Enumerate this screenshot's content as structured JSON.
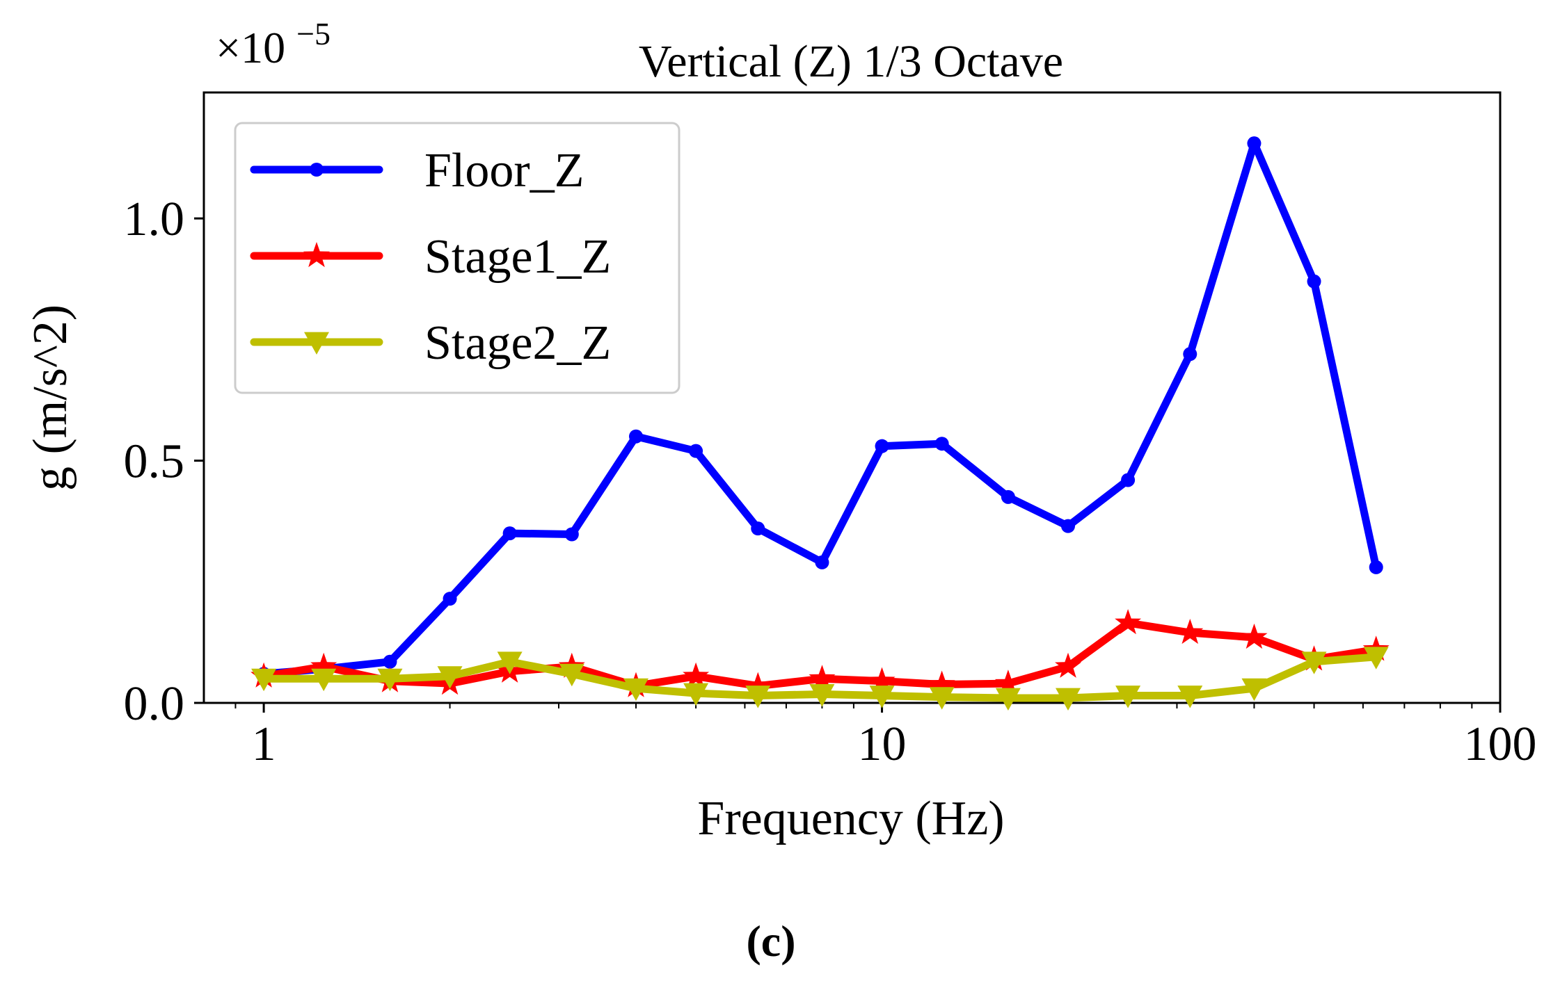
{
  "chart_data": {
    "type": "line",
    "title": "Vertical (Z) 1/3 Octave",
    "xlabel": "Frequency (Hz)",
    "ylabel": "g (m/s^2)",
    "x_scale": "log",
    "y_multiplier_base": "×10",
    "y_multiplier_exponent": "−5",
    "xlim": [
      0.8,
      100
    ],
    "ylim": [
      0,
      1.26
    ],
    "x_ticks": [
      {
        "value": 1,
        "label": "1"
      },
      {
        "value": 10,
        "label": "10"
      },
      {
        "value": 100,
        "label": "100"
      }
    ],
    "y_ticks": [
      {
        "value": 0.0,
        "label": "0.0"
      },
      {
        "value": 0.5,
        "label": "0.5"
      },
      {
        "value": 1.0,
        "label": "1.0"
      }
    ],
    "x": [
      1,
      1.25,
      1.6,
      2,
      2.5,
      3.15,
      4,
      5,
      6.3,
      8,
      10,
      12.5,
      16,
      20,
      25,
      31.5,
      40,
      50,
      63
    ],
    "series": [
      {
        "name": "Floor_Z",
        "color": "#0000ff",
        "marker": "circle",
        "values": [
          0.06,
          0.07,
          0.085,
          0.215,
          0.35,
          0.348,
          0.55,
          0.52,
          0.36,
          0.29,
          0.53,
          0.535,
          0.425,
          0.365,
          0.46,
          0.72,
          1.155,
          0.87,
          0.28
        ]
      },
      {
        "name": "Stage1_Z",
        "color": "#ff0000",
        "marker": "star",
        "values": [
          0.055,
          0.075,
          0.045,
          0.04,
          0.065,
          0.075,
          0.035,
          0.055,
          0.035,
          0.05,
          0.045,
          0.038,
          0.04,
          0.075,
          0.165,
          0.145,
          0.135,
          0.09,
          0.11
        ]
      },
      {
        "name": "Stage2_Z",
        "color": "#bfbf00",
        "marker": "triangle-down",
        "values": [
          0.05,
          0.05,
          0.05,
          0.055,
          0.085,
          0.06,
          0.03,
          0.02,
          0.015,
          0.018,
          0.015,
          0.012,
          0.01,
          0.01,
          0.015,
          0.015,
          0.03,
          0.085,
          0.095
        ]
      }
    ],
    "legend_position": "top-left",
    "grid": false
  },
  "caption": "(c)"
}
